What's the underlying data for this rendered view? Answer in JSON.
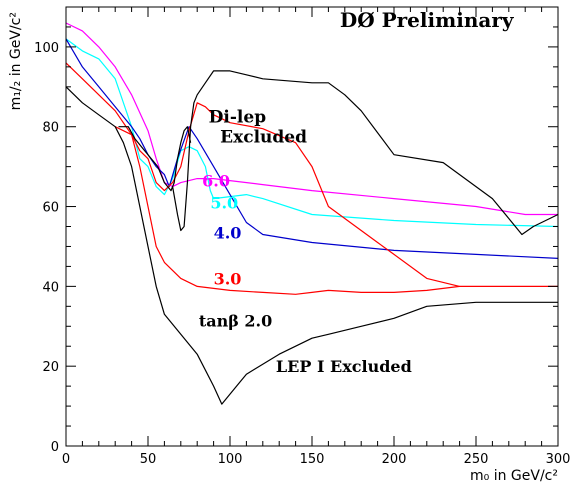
{
  "chart_data": {
    "type": "line",
    "title": "DØ Preliminary",
    "xlabel": "m₀ in GeV/c²",
    "ylabel": "m₁/₂ in GeV/c²",
    "xlim": [
      0,
      300
    ],
    "ylim": [
      0,
      110
    ],
    "x_ticks": [
      0,
      50,
      100,
      150,
      200,
      250,
      300
    ],
    "y_ticks": [
      0,
      20,
      40,
      60,
      80,
      100
    ],
    "grid": false,
    "legend": "none",
    "annotations": [
      {
        "text": "DØ Preliminary",
        "x": 167,
        "y": 105,
        "size": 20,
        "color": "#000000"
      },
      {
        "text": "Di-lep",
        "x": 87,
        "y": 81,
        "size": 17,
        "color": "#000000"
      },
      {
        "text": "Excluded",
        "x": 94,
        "y": 76,
        "size": 17,
        "color": "#000000"
      },
      {
        "text": "6.0",
        "x": 83,
        "y": 65,
        "size": 16,
        "color": "#ff00ff"
      },
      {
        "text": "5.0",
        "x": 88,
        "y": 59.5,
        "size": 16,
        "color": "#00ffff"
      },
      {
        "text": "4.0",
        "x": 90,
        "y": 52,
        "size": 16,
        "color": "#0000cc"
      },
      {
        "text": "3.0",
        "x": 90,
        "y": 40.5,
        "size": 16,
        "color": "#ff0000"
      },
      {
        "text": "tanβ 2.0",
        "x": 81,
        "y": 30,
        "size": 16,
        "color": "#000000"
      },
      {
        "text": "LEP I Excluded",
        "x": 128,
        "y": 18.5,
        "size": 16,
        "color": "#000000"
      }
    ],
    "series": [
      {
        "color": "#ff00ff",
        "x": [
          0,
          10,
          20,
          30,
          40,
          50,
          55,
          60,
          65,
          70,
          80,
          90,
          100,
          120,
          150,
          200,
          250,
          280,
          300
        ],
        "y": [
          106,
          104,
          100,
          95,
          88,
          79,
          72,
          66,
          65,
          66,
          67,
          67,
          66.5,
          65.5,
          64,
          62,
          60,
          58,
          58
        ]
      },
      {
        "color": "#00ffff",
        "x": [
          0,
          10,
          20,
          30,
          40,
          45,
          50,
          55,
          60,
          65,
          70,
          75,
          80,
          85,
          88,
          90,
          100,
          110,
          120,
          150,
          200,
          250,
          300
        ],
        "y": [
          102,
          99,
          97,
          92,
          80,
          72,
          70,
          65,
          63,
          67,
          74,
          75,
          74,
          70,
          64,
          62,
          62.5,
          63,
          62,
          58,
          56.5,
          55.5,
          55
        ]
      },
      {
        "color": "#0000cc",
        "x": [
          0,
          10,
          20,
          30,
          40,
          45,
          50,
          55,
          60,
          63,
          68,
          75,
          80,
          90,
          100,
          110,
          120,
          150,
          200,
          250,
          300
        ],
        "y": [
          102,
          95,
          90,
          85,
          80,
          77,
          73,
          70,
          68,
          65,
          72,
          80,
          77,
          70,
          63,
          56,
          53,
          51,
          49,
          48,
          47
        ]
      },
      {
        "color": "#ff0000",
        "x": [
          0,
          10,
          20,
          30,
          40,
          45,
          50,
          55,
          60,
          65,
          70,
          75,
          80,
          85,
          90,
          95,
          100,
          120,
          140,
          150,
          160,
          170,
          180,
          190,
          200,
          220,
          240,
          260,
          300
        ],
        "y": [
          96,
          92,
          88,
          84,
          78,
          74,
          72,
          66,
          64,
          66,
          70,
          79,
          86,
          85,
          83,
          82,
          81,
          79.5,
          76,
          70,
          60,
          57,
          54,
          51,
          48,
          42,
          40,
          40,
          40
        ]
      },
      {
        "color": "#ff0000",
        "x": [
          30,
          40,
          45,
          50,
          55,
          60,
          65,
          70,
          75,
          80,
          90,
          100,
          120,
          140,
          150,
          160,
          180,
          200,
          220,
          240
        ],
        "y": [
          80,
          78,
          70,
          60,
          50,
          46,
          44,
          42,
          41,
          40,
          39.5,
          39,
          38.5,
          38,
          38.5,
          39,
          38.5,
          38.5,
          39,
          40
        ]
      },
      {
        "color": "#000000",
        "x": [
          0,
          10,
          20,
          30,
          35,
          40,
          45,
          50,
          55,
          60,
          70,
          80,
          90,
          95,
          100,
          110,
          130,
          150,
          160,
          180,
          200,
          220,
          250,
          300
        ],
        "y": [
          90,
          86,
          83,
          80,
          76,
          70,
          60,
          50,
          40,
          33,
          28,
          23,
          15,
          10.5,
          13,
          18,
          23,
          27,
          28,
          30,
          32,
          35,
          36,
          36
        ]
      },
      {
        "color": "#000000",
        "x": [
          65,
          68,
          70,
          72,
          74,
          76,
          78,
          80,
          85,
          90,
          100,
          110,
          120,
          150,
          160,
          170,
          180,
          200,
          230,
          260,
          270,
          278,
          285,
          300
        ],
        "y": [
          65,
          58,
          54,
          55,
          66,
          80,
          86,
          88,
          91,
          94,
          94,
          93,
          92,
          91,
          91,
          88,
          84,
          73,
          71,
          62,
          57,
          53,
          55,
          58
        ]
      },
      {
        "color": "#000000",
        "x": [
          32,
          38,
          42,
          48,
          52,
          56,
          60,
          64,
          66,
          68,
          70,
          72,
          74,
          76
        ],
        "y": [
          80,
          80,
          77,
          74,
          72,
          70,
          66,
          64,
          66,
          72,
          76,
          79,
          80,
          76
        ]
      }
    ]
  }
}
